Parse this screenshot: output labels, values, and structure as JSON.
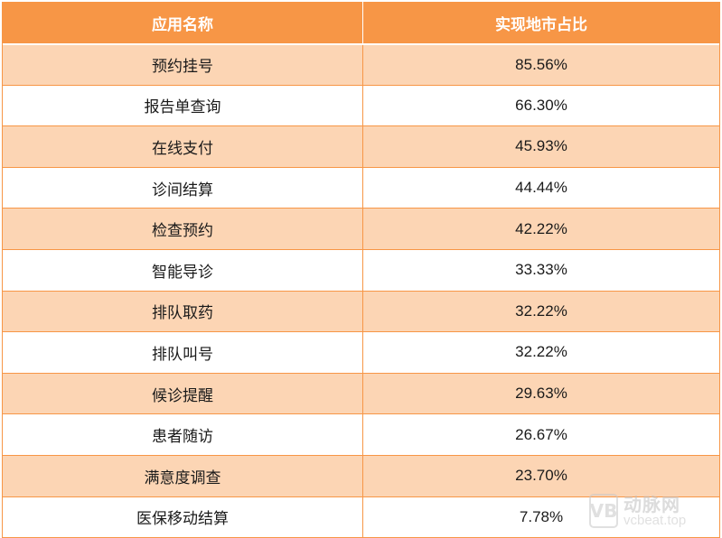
{
  "table": {
    "headers": [
      "应用名称",
      "实现地市占比"
    ],
    "rows": [
      {
        "name": "预约挂号",
        "ratio": "85.56%"
      },
      {
        "name": "报告单查询",
        "ratio": "66.30%"
      },
      {
        "name": "在线支付",
        "ratio": "45.93%"
      },
      {
        "name": "诊间结算",
        "ratio": "44.44%"
      },
      {
        "name": "检查预约",
        "ratio": "42.22%"
      },
      {
        "name": "智能导诊",
        "ratio": "33.33%"
      },
      {
        "name": "排队取药",
        "ratio": "32.22%"
      },
      {
        "name": "排队叫号",
        "ratio": "32.22%"
      },
      {
        "name": "候诊提醒",
        "ratio": "29.63%"
      },
      {
        "name": "患者随访",
        "ratio": "26.67%"
      },
      {
        "name": "满意度调查",
        "ratio": "23.70%"
      },
      {
        "name": "医保移动结算",
        "ratio": "7.78%"
      }
    ]
  },
  "colors": {
    "header_bg": "#f79646",
    "band_bg": "#fcd5b4",
    "plain_bg": "#ffffff",
    "border": "#f79646"
  },
  "watermark": {
    "logo": "VB",
    "cn": "动脉网",
    "en": "vcbeat.top"
  }
}
